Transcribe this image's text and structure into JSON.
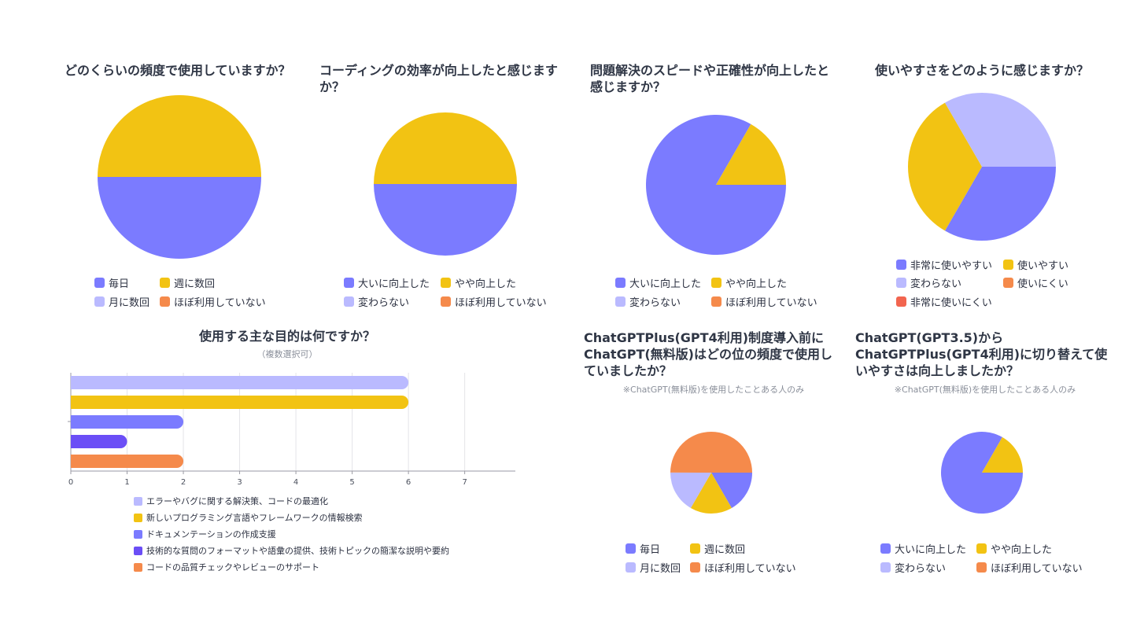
{
  "colors": {
    "blue": "#7b7bff",
    "yellow": "#f2c313",
    "lavender": "#babaff",
    "orange": "#f58a4b",
    "red": "#f2654f",
    "purple": "#6b4ef6"
  },
  "pies": [
    {
      "title": "どのくらいの頻度で使用していますか？",
      "chart_data": {
        "type": "pie",
        "title": "どのくらいの頻度で使用していますか？",
        "labels": [
          "毎日",
          "週に数回",
          "月に数回",
          "ほぼ利用していない"
        ],
        "values": [
          50,
          50,
          0,
          0
        ],
        "colors": [
          "#7b7bff",
          "#f2c313",
          "#babaff",
          "#f58a4b"
        ]
      }
    },
    {
      "title": "コーディングの効率が向上したと感じますか？",
      "chart_data": {
        "type": "pie",
        "title": "コーディングの効率が向上したと感じますか？",
        "labels": [
          "大いに向上した",
          "やや向上した",
          "変わらない",
          "ほぼ利用していない"
        ],
        "values": [
          50,
          50,
          0,
          0
        ],
        "colors": [
          "#7b7bff",
          "#f2c313",
          "#babaff",
          "#f58a4b"
        ]
      }
    },
    {
      "title": "問題解決のスピードや正確性が向上したと感じますか？",
      "chart_data": {
        "type": "pie",
        "title": "問題解決のスピードや正確性が向上したと感じますか？",
        "labels": [
          "大いに向上した",
          "やや向上した",
          "変わらない",
          "ほぼ利用していない"
        ],
        "values": [
          83.3,
          16.7,
          0,
          0
        ],
        "colors": [
          "#7b7bff",
          "#f2c313",
          "#babaff",
          "#f58a4b"
        ]
      }
    },
    {
      "title": "使いやすさをどのように感じますか？",
      "chart_data": {
        "type": "pie",
        "title": "使いやすさをどのように感じますか？",
        "labels": [
          "非常に使いやすい",
          "使いやすい",
          "変わらない",
          "使いにくい",
          "非常に使いにくい"
        ],
        "values": [
          33.3,
          33.3,
          33.3,
          0,
          0
        ],
        "colors": [
          "#7b7bff",
          "#f2c313",
          "#babaff",
          "#f58a4b",
          "#f2654f"
        ]
      }
    },
    {
      "title": "ChatGPTPlus(GPT4利用)制度導入前にChatGPT(無料版)はどの位の頻度で使用していましたか？",
      "subtitle": "※ChatGPT(無料版)を使用したことある人のみ",
      "chart_data": {
        "type": "pie",
        "title": "ChatGPTPlus(GPT4利用)制度導入前にChatGPT(無料版)はどの位の頻度で使用していましたか？",
        "labels": [
          "毎日",
          "週に数回",
          "月に数回",
          "ほぼ利用していない"
        ],
        "values": [
          16.7,
          16.7,
          16.7,
          50
        ],
        "colors": [
          "#7b7bff",
          "#f2c313",
          "#babaff",
          "#f58a4b"
        ]
      }
    },
    {
      "title": "ChatGPT(GPT3.5)からChatGPTPlus(GPT4利用)に切り替えて使いやすさは向上しましたか？",
      "subtitle": "※ChatGPT(無料版)を使用したことある人のみ",
      "chart_data": {
        "type": "pie",
        "title": "ChatGPT(GPT3.5)からChatGPTPlus(GPT4利用)に切り替えて使いやすさは向上しましたか？",
        "labels": [
          "大いに向上した",
          "やや向上した",
          "変わらない",
          "ほぼ利用していない"
        ],
        "values": [
          83.3,
          16.7,
          0,
          0
        ],
        "colors": [
          "#7b7bff",
          "#f2c313",
          "#babaff",
          "#f58a4b"
        ]
      }
    }
  ],
  "bar": {
    "title": "使用する主な目的は何ですか？",
    "subtitle": "（複数選択可）",
    "chart_data": {
      "type": "bar",
      "orientation": "horizontal",
      "title": "使用する主な目的は何ですか？",
      "categories": [
        "エラーやバグに関する解決策、コードの最適化",
        "新しいプログラミング言語やフレームワークの情報検索",
        "ドキュメンテーションの作成支援",
        "技術的な質問のフォーマットや語彙の提供、技術トピックの簡潔な説明や要約",
        "コードの品質チェックやレビューのサポート"
      ],
      "values": [
        6,
        6,
        2,
        1,
        2
      ],
      "colors": [
        "#babaff",
        "#f2c313",
        "#7b7bff",
        "#6b4ef6",
        "#f58a4b"
      ],
      "xlim": [
        0,
        7.9
      ],
      "xticks": [
        "0",
        "1",
        "2",
        "3",
        "4",
        "5",
        "6",
        "7"
      ],
      "grid": true
    }
  }
}
